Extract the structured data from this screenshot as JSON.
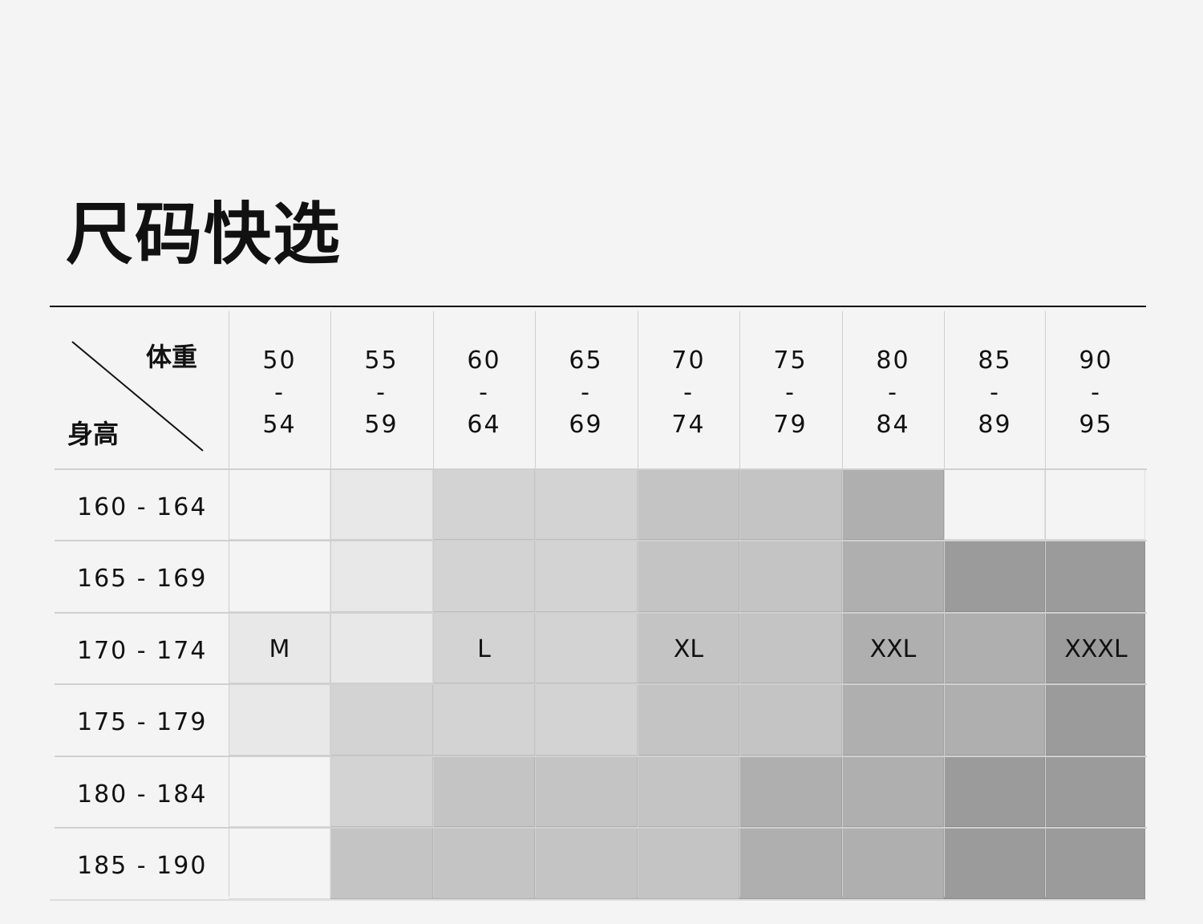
{
  "title": "尺码快选",
  "corner": {
    "weight_label": "体重",
    "height_label": "身高"
  },
  "weight_ranges": [
    {
      "from": "50",
      "to": "54"
    },
    {
      "from": "55",
      "to": "59"
    },
    {
      "from": "60",
      "to": "64"
    },
    {
      "from": "65",
      "to": "69"
    },
    {
      "from": "70",
      "to": "74"
    },
    {
      "from": "75",
      "to": "79"
    },
    {
      "from": "80",
      "to": "84"
    },
    {
      "from": "85",
      "to": "89"
    },
    {
      "from": "90",
      "to": "95"
    }
  ],
  "height_ranges": [
    "160 - 164",
    "165 - 169",
    "170 - 174",
    "175 - 179",
    "180 - 184",
    "185 - 190"
  ],
  "shade_colors": [
    "#f4f4f4",
    "#e8e8e8",
    "#d3d3d3",
    "#c4c4c4",
    "#afafaf",
    "#9b9b9b"
  ],
  "size_levels": [
    [
      0,
      1,
      2,
      2,
      3,
      3,
      4,
      0,
      0
    ],
    [
      0,
      1,
      2,
      2,
      3,
      3,
      4,
      5,
      5
    ],
    [
      1,
      1,
      2,
      2,
      3,
      3,
      4,
      4,
      5
    ],
    [
      1,
      2,
      2,
      2,
      3,
      3,
      4,
      4,
      5
    ],
    [
      0,
      2,
      3,
      3,
      3,
      4,
      4,
      5,
      5
    ],
    [
      0,
      3,
      3,
      3,
      3,
      4,
      4,
      5,
      5
    ]
  ],
  "size_labels": [
    {
      "label": "M",
      "row": 2,
      "col": 0
    },
    {
      "label": "L",
      "row": 2,
      "col": 2
    },
    {
      "label": "XL",
      "row": 2,
      "col": 4
    },
    {
      "label": "XXL",
      "row": 2,
      "col": 6
    },
    {
      "label": "XXXL",
      "row": 2,
      "col": 8
    }
  ]
}
